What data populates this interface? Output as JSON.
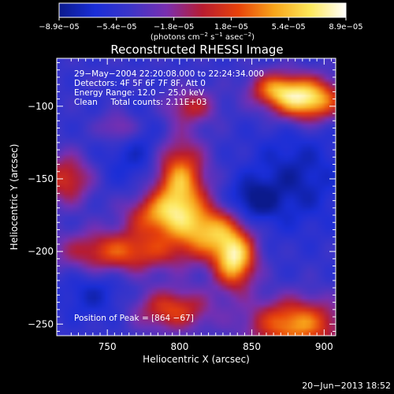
{
  "chart_data": {
    "type": "heatmap",
    "title": "Reconstructed RHESSI Image",
    "xlabel": "Heliocentric X (arcsec)",
    "ylabel": "Heliocentric Y (arcsec)",
    "xlim": [
      715,
      908
    ],
    "ylim": [
      -258,
      -67
    ],
    "x_ticks": [
      750,
      800,
      850,
      900
    ],
    "y_ticks": [
      -100,
      -150,
      -200,
      -250
    ],
    "x_tick_labels": [
      "750",
      "800",
      "850",
      "900"
    ],
    "y_tick_labels": [
      "−100",
      "−150",
      "−200",
      "−250"
    ],
    "colorbar": {
      "min": -8.9e-05,
      "max": 8.9e-05,
      "tick_labels": [
        "−8.9e−05",
        "−5.4e−05",
        "−1.8e−05",
        "1.8e−05",
        "5.4e−05",
        "8.9e−05"
      ],
      "units_prefix": "(photons cm",
      "units_exp1": "−2",
      "units_mid": " s",
      "units_exp2": "−1",
      "units_mid2": " asec",
      "units_exp3": "−2",
      "units_suffix": ")",
      "colormap": [
        "#0b1a8c",
        "#1a2ed8",
        "#3d35c8",
        "#7a2fb0",
        "#b81c30",
        "#e8420a",
        "#f8a51a",
        "#fde85a",
        "#ffffff"
      ]
    },
    "annotations": [
      "29−May−2004 22:20:08.000 to 22:24:34.000",
      "Detectors: 4F 5F 6F 7F 8F, Att 0",
      "Energy Range: 12.0 − 25.0 keV",
      "Clean     Total counts: 2.11E+03"
    ],
    "peak_label": "Position of Peak = [864 −67]",
    "sources": [
      {
        "x": 888,
        "y": -95,
        "sx": 16,
        "sy": 10,
        "v": 1.0
      },
      {
        "x": 865,
        "y": -88,
        "sx": 12,
        "sy": 8,
        "v": 0.55
      },
      {
        "x": 800,
        "y": -155,
        "sx": 12,
        "sy": 22,
        "v": 0.85
      },
      {
        "x": 820,
        "y": -185,
        "sx": 14,
        "sy": 12,
        "v": 0.7
      },
      {
        "x": 838,
        "y": -205,
        "sx": 10,
        "sy": 14,
        "v": 0.95
      },
      {
        "x": 760,
        "y": -200,
        "sx": 30,
        "sy": 10,
        "v": 0.6
      },
      {
        "x": 782,
        "y": -175,
        "sx": 14,
        "sy": 10,
        "v": 0.55
      },
      {
        "x": 880,
        "y": -250,
        "sx": 22,
        "sy": 12,
        "v": 0.75
      },
      {
        "x": 795,
        "y": -240,
        "sx": 18,
        "sy": 10,
        "v": 0.55
      },
      {
        "x": 722,
        "y": -150,
        "sx": 12,
        "sy": 12,
        "v": 0.5
      },
      {
        "x": 808,
        "y": -100,
        "sx": 12,
        "sy": 8,
        "v": 0.4
      },
      {
        "x": 758,
        "y": -115,
        "sx": 10,
        "sy": 8,
        "v": 0.35
      },
      {
        "x": 850,
        "y": -165,
        "sx": 12,
        "sy": 10,
        "v": -0.3
      },
      {
        "x": 880,
        "y": -150,
        "sx": 22,
        "sy": 24,
        "v": -0.25
      },
      {
        "x": 740,
        "y": -230,
        "sx": 16,
        "sy": 12,
        "v": -0.2
      },
      {
        "x": 770,
        "y": -130,
        "sx": 18,
        "sy": 18,
        "v": -0.2
      }
    ]
  },
  "footer": {
    "timestamp": "20−Jun−2013 18:52"
  }
}
